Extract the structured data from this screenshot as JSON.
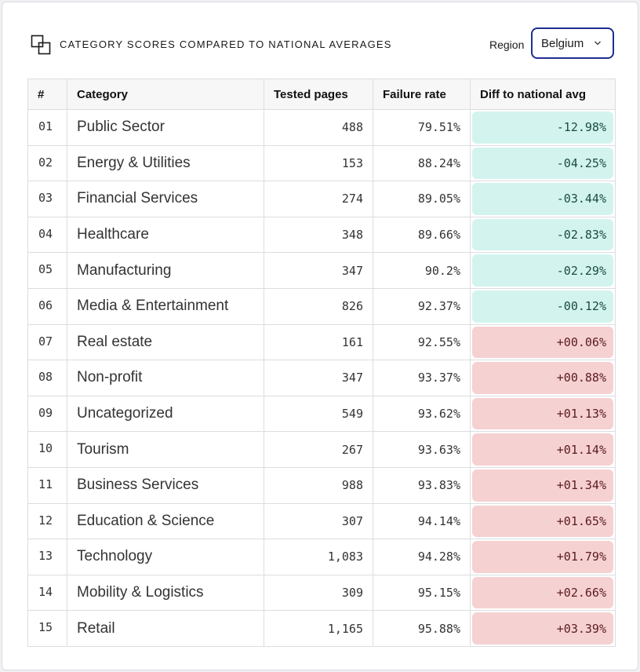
{
  "header": {
    "title": "CATEGORY SCORES COMPARED TO NATIONAL AVERAGES",
    "logo_icon": "overlapping-squares-icon",
    "region_label": "Region",
    "region_value": "Belgium",
    "region_icon": "chevron-down-icon"
  },
  "colors": {
    "negative_diff_bg": "#d3f4ee",
    "positive_diff_bg": "#f6d1d2",
    "accent_border": "#1f2f8f"
  },
  "table": {
    "columns": [
      "#",
      "Category",
      "Tested pages",
      "Failure rate",
      "Diff to national avg"
    ],
    "rows": [
      {
        "idx": "01",
        "category": "Public Sector",
        "tested": "488",
        "failure": "79.51%",
        "diff": "-12.98%"
      },
      {
        "idx": "02",
        "category": "Energy & Utilities",
        "tested": "153",
        "failure": "88.24%",
        "diff": "-04.25%"
      },
      {
        "idx": "03",
        "category": "Financial Services",
        "tested": "274",
        "failure": "89.05%",
        "diff": "-03.44%"
      },
      {
        "idx": "04",
        "category": "Healthcare",
        "tested": "348",
        "failure": "89.66%",
        "diff": "-02.83%"
      },
      {
        "idx": "05",
        "category": "Manufacturing",
        "tested": "347",
        "failure": "90.2%",
        "diff": "-02.29%"
      },
      {
        "idx": "06",
        "category": "Media & Entertainment",
        "tested": "826",
        "failure": "92.37%",
        "diff": "-00.12%"
      },
      {
        "idx": "07",
        "category": "Real estate",
        "tested": "161",
        "failure": "92.55%",
        "diff": "+00.06%"
      },
      {
        "idx": "08",
        "category": "Non-profit",
        "tested": "347",
        "failure": "93.37%",
        "diff": "+00.88%"
      },
      {
        "idx": "09",
        "category": "Uncategorized",
        "tested": "549",
        "failure": "93.62%",
        "diff": "+01.13%"
      },
      {
        "idx": "10",
        "category": "Tourism",
        "tested": "267",
        "failure": "93.63%",
        "diff": "+01.14%"
      },
      {
        "idx": "11",
        "category": "Business Services",
        "tested": "988",
        "failure": "93.83%",
        "diff": "+01.34%"
      },
      {
        "idx": "12",
        "category": "Education & Science",
        "tested": "307",
        "failure": "94.14%",
        "diff": "+01.65%"
      },
      {
        "idx": "13",
        "category": "Technology",
        "tested": "1,083",
        "failure": "94.28%",
        "diff": "+01.79%"
      },
      {
        "idx": "14",
        "category": "Mobility & Logistics",
        "tested": "309",
        "failure": "95.15%",
        "diff": "+02.66%"
      },
      {
        "idx": "15",
        "category": "Retail",
        "tested": "1,165",
        "failure": "95.88%",
        "diff": "+03.39%"
      }
    ]
  }
}
